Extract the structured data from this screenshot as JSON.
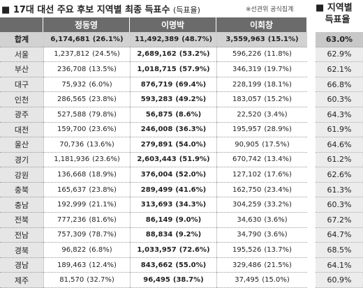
{
  "header": {
    "title": "17대 대선 주요 후보 지역별 최종 득표수",
    "subtitle": "(득표율)",
    "note": "※선관위 공식집계",
    "side_title": [
      "지역별",
      "득표율"
    ]
  },
  "table": {
    "columns": [
      "정동영",
      "이명박",
      "이회창"
    ],
    "rows": [
      [
        "합계",
        [
          "6,174,681",
          "(26.1%)"
        ],
        [
          "11,492,389",
          "(48.7%)"
        ],
        [
          "3,559,963",
          "(15.1%)"
        ],
        "63.0%"
      ],
      [
        "서울",
        [
          "1,237,812",
          "(24.5%)"
        ],
        [
          "2,689,162",
          "(53.2%)"
        ],
        [
          "596,226",
          "(11.8%)"
        ],
        "62.9%"
      ],
      [
        "부산",
        [
          "236,708",
          "(13.5%)"
        ],
        [
          "1,018,715",
          "(57.9%)"
        ],
        [
          "346,319",
          "(19.7%)"
        ],
        "62.1%"
      ],
      [
        "대구",
        [
          "75,932",
          "(6.0%)"
        ],
        [
          "876,719",
          "(69.4%)"
        ],
        [
          "228,199",
          "(18.1%)"
        ],
        "66.8%"
      ],
      [
        "인천",
        [
          "286,565",
          "(23.8%)"
        ],
        [
          "593,283",
          "(49.2%)"
        ],
        [
          "183,057",
          "(15.2%)"
        ],
        "60.3%"
      ],
      [
        "광주",
        [
          "527,588",
          "(79.8%)"
        ],
        [
          "56,875",
          "(8.6%)"
        ],
        [
          "22,520",
          "(3.4%)"
        ],
        "64.3%"
      ],
      [
        "대전",
        [
          "159,700",
          "(23.6%)"
        ],
        [
          "246,008",
          "(36.3%)"
        ],
        [
          "195,957",
          "(28.9%)"
        ],
        "61.9%"
      ],
      [
        "울산",
        [
          "70,736",
          "(13.6%)"
        ],
        [
          "279,891",
          "(54.0%)"
        ],
        [
          "90,905",
          "(17.5%)"
        ],
        "64.6%"
      ],
      [
        "경기",
        [
          "1,181,936",
          "(23.6%)"
        ],
        [
          "2,603,443",
          "(51.9%)"
        ],
        [
          "670,742",
          "(13.4%)"
        ],
        "61.2%"
      ],
      [
        "강원",
        [
          "136,668",
          "(18.9%)"
        ],
        [
          "376,004",
          "(52.0%)"
        ],
        [
          "127,102",
          "(17.6%)"
        ],
        "62.6%"
      ],
      [
        "충북",
        [
          "165,637",
          "(23.8%)"
        ],
        [
          "289,499",
          "(41.6%)"
        ],
        [
          "162,750",
          "(23.4%)"
        ],
        "61.3%"
      ],
      [
        "충남",
        [
          "192,999",
          "(21.1%)"
        ],
        [
          "313,693",
          "(34.3%)"
        ],
        [
          "304,259",
          "(33.2%)"
        ],
        "60.3%"
      ],
      [
        "전북",
        [
          "777,236",
          "(81.6%)"
        ],
        [
          "86,149",
          "(9.0%)"
        ],
        [
          "34,630",
          "(3.6%)"
        ],
        "67.2%"
      ],
      [
        "전남",
        [
          "757,309",
          "(78.7%)"
        ],
        [
          "88,834",
          "(9.2%)"
        ],
        [
          "34,790",
          "(3.6%)"
        ],
        "64.7%"
      ],
      [
        "경북",
        [
          "96,822",
          "(6.8%)"
        ],
        [
          "1,033,957",
          "(72.6%)"
        ],
        [
          "195,526",
          "(13.7%)"
        ],
        "68.5%"
      ],
      [
        "경남",
        [
          "189,463",
          "(12.4%)"
        ],
        [
          "843,662",
          "(55.0%)"
        ],
        [
          "329,486",
          "(21.5%)"
        ],
        "64.1%"
      ],
      [
        "제주",
        [
          "81,570",
          "(32.7%)"
        ],
        [
          "96,495",
          "(38.7%)"
        ],
        [
          "37,495",
          "(15.0%)"
        ],
        "60.9%"
      ]
    ]
  }
}
